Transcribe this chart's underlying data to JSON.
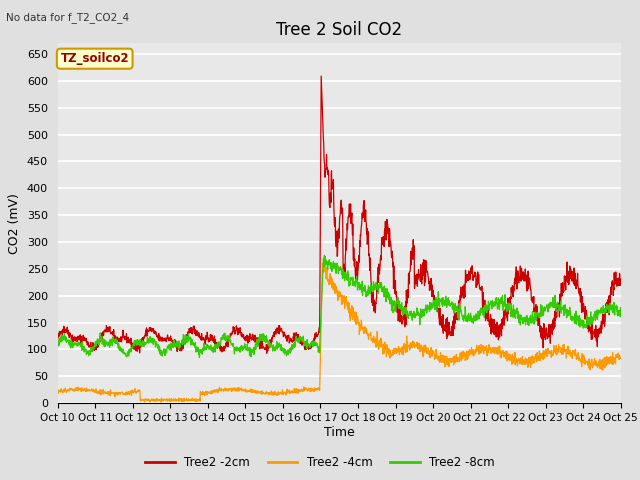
{
  "title": "Tree 2 Soil CO2",
  "subtitle": "No data for f_T2_CO2_4",
  "ylabel": "CO2 (mV)",
  "xlabel": "Time",
  "legend_label": "TZ_soilco2",
  "ylim": [
    0,
    670
  ],
  "yticks": [
    0,
    50,
    100,
    150,
    200,
    250,
    300,
    350,
    400,
    450,
    500,
    550,
    600,
    650
  ],
  "xtick_labels": [
    "Oct 10",
    "Oct 11",
    "Oct 12",
    "Oct 13",
    "Oct 14",
    "Oct 15",
    "Oct 16",
    "Oct 17",
    "Oct 18",
    "Oct 19",
    "Oct 20",
    "Oct 21",
    "Oct 22",
    "Oct 23",
    "Oct 24",
    "Oct 25"
  ],
  "series_colors": [
    "#cc0000",
    "#ff9900",
    "#33cc00"
  ],
  "series_labels": [
    "Tree2 -2cm",
    "Tree2 -4cm",
    "Tree2 -8cm"
  ],
  "background_color": "#e0e0e0",
  "plot_bg_color": "#e8e8e8",
  "grid_color": "#ffffff",
  "title_fontsize": 12,
  "axis_fontsize": 9,
  "tick_fontsize": 8
}
